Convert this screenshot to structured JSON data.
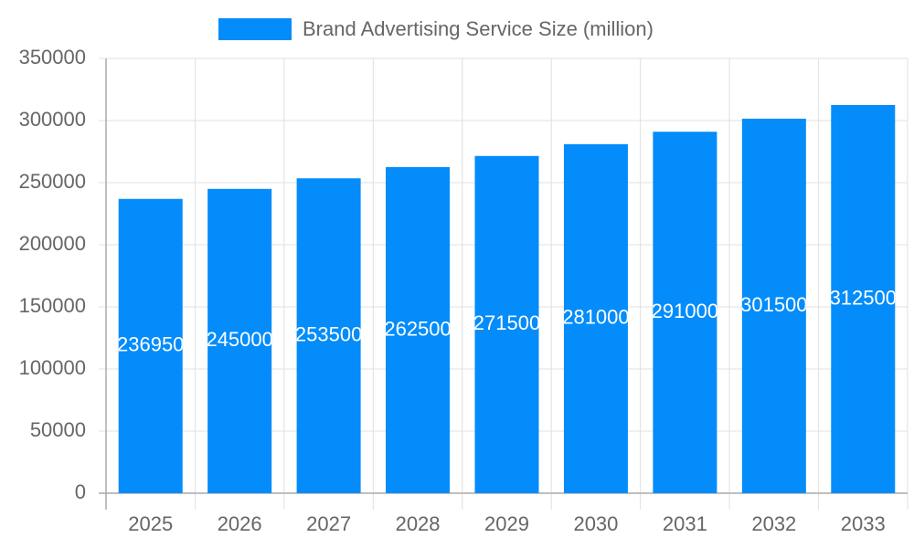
{
  "chart_data": {
    "type": "bar",
    "categories": [
      "2025",
      "2026",
      "2027",
      "2028",
      "2029",
      "2030",
      "2031",
      "2032",
      "2033"
    ],
    "series": [
      {
        "name": "Brand Advertising Service Size (million)",
        "color": "#038cfa",
        "values": [
          236950,
          245000,
          253500,
          262500,
          271500,
          281000,
          291000,
          301500,
          312500
        ]
      }
    ],
    "ylim": [
      0,
      350000
    ],
    "yticks": [
      0,
      50000,
      100000,
      150000,
      200000,
      250000,
      300000,
      350000
    ],
    "grid": true,
    "legend": "top",
    "data_labels": true
  }
}
